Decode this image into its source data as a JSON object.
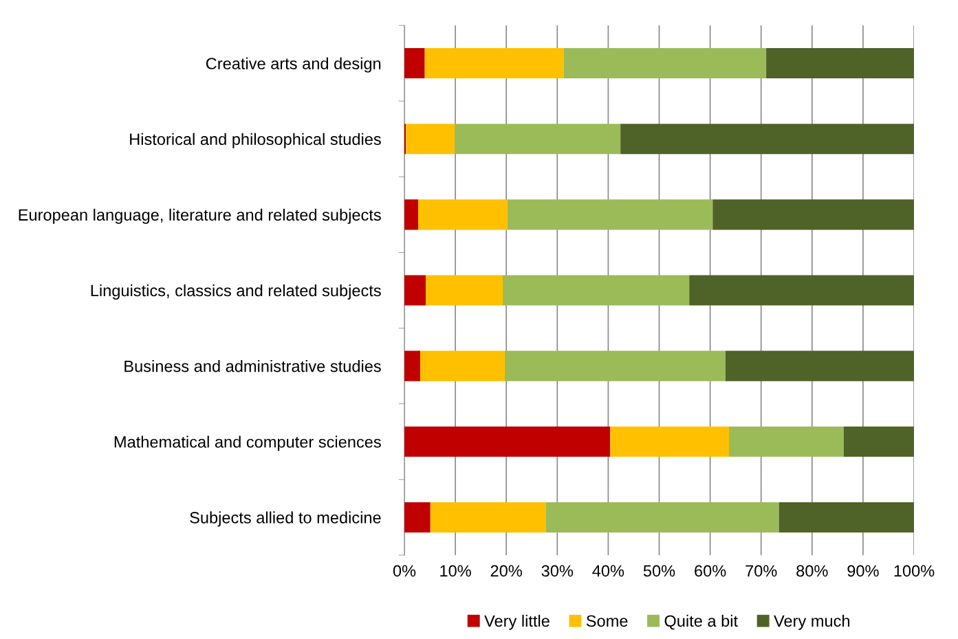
{
  "chart_data": {
    "type": "bar",
    "orientation": "horizontal",
    "stacked": true,
    "categories": [
      "Creative arts and design",
      "Historical and philosophical studies",
      "European language, literature and related subjects",
      "Linguistics, classics and related subjects",
      "Business and administrative studies",
      "Mathematical and computer sciences",
      "Subjects allied to medicine"
    ],
    "series": [
      {
        "name": "Very little",
        "color": "#c00000",
        "values": [
          4.0,
          0.3,
          2.7,
          4.2,
          3.1,
          40.4,
          5.1
        ]
      },
      {
        "name": "Some",
        "color": "#ffc000",
        "values": [
          27.3,
          9.6,
          17.5,
          15.1,
          16.6,
          23.3,
          22.7
        ]
      },
      {
        "name": "Quite a bit",
        "color": "#9bbb59",
        "values": [
          39.7,
          32.5,
          40.3,
          36.6,
          43.3,
          22.5,
          45.7
        ]
      },
      {
        "name": "Very much",
        "color": "#4f6228",
        "values": [
          29.0,
          57.6,
          39.5,
          44.1,
          37.0,
          13.8,
          26.5
        ]
      }
    ],
    "xlim": [
      0,
      100
    ],
    "xticks": [
      {
        "value": 0,
        "label": "0%"
      },
      {
        "value": 10,
        "label": "10%"
      },
      {
        "value": 20,
        "label": "20%"
      },
      {
        "value": 30,
        "label": "30%"
      },
      {
        "value": 40,
        "label": "40%"
      },
      {
        "value": 50,
        "label": "50%"
      },
      {
        "value": 60,
        "label": "60%"
      },
      {
        "value": 70,
        "label": "70%"
      },
      {
        "value": 80,
        "label": "80%"
      },
      {
        "value": 90,
        "label": "90%"
      },
      {
        "value": 100,
        "label": "100%"
      }
    ],
    "grid": "x",
    "legend": "bottom"
  }
}
